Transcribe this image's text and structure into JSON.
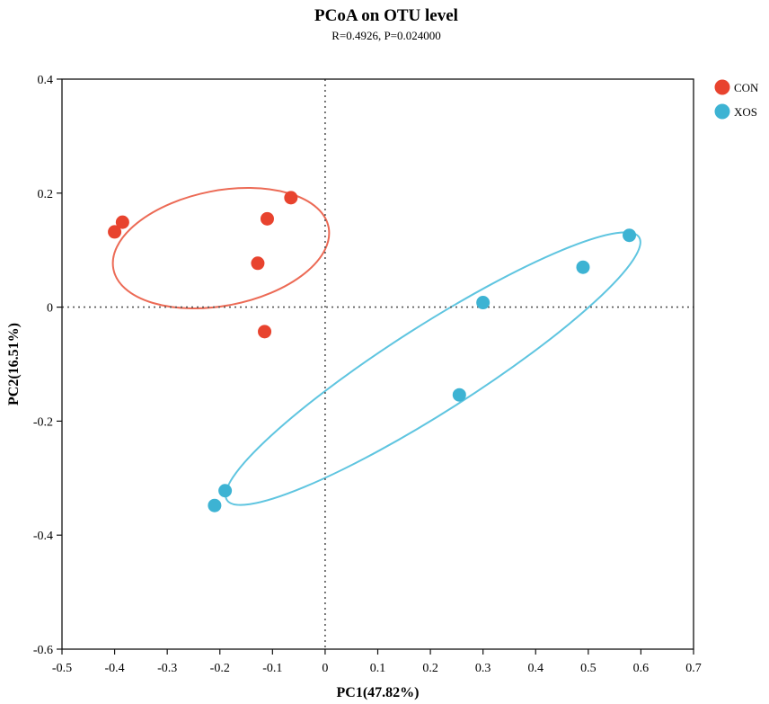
{
  "chart_data": {
    "type": "scatter",
    "title": "PCoA on OTU level",
    "subtitle": "R=0.4926, P=0.024000",
    "xlabel": "PC1(47.82%)",
    "ylabel": "PC2(16.51%)",
    "xlim": [
      -0.5,
      0.7
    ],
    "ylim": [
      -0.6,
      0.4
    ],
    "xticks": [
      -0.5,
      -0.4,
      -0.3,
      -0.2,
      -0.1,
      0,
      0.1,
      0.2,
      0.3,
      0.4,
      0.5,
      0.6,
      0.7
    ],
    "yticks": [
      -0.6,
      -0.4,
      -0.2,
      0,
      0.2,
      0.4
    ],
    "xtick_labels": [
      "-0.5",
      "-0.4",
      "-0.3",
      "-0.2",
      "-0.1",
      "0",
      "0.1",
      "0.2",
      "0.3",
      "0.4",
      "0.5",
      "0.6",
      "0.7"
    ],
    "ytick_labels": [
      "-0.6",
      "-0.4",
      "-0.2",
      "0",
      "0.2",
      "0.4"
    ],
    "reference_lines": {
      "x": 0,
      "y": 0,
      "style": "dotted"
    },
    "grid": false,
    "legend": "top-right",
    "series": [
      {
        "name": "CON",
        "color": "#e8432e",
        "ellipse_color": "#ec6a55",
        "points": [
          [
            -0.4,
            0.132
          ],
          [
            -0.385,
            0.149
          ],
          [
            -0.065,
            0.192
          ],
          [
            -0.11,
            0.155
          ],
          [
            -0.128,
            0.077
          ],
          [
            -0.115,
            -0.043
          ]
        ]
      },
      {
        "name": "XOS",
        "color": "#3db3d3",
        "ellipse_color": "#5fc5e0",
        "points": [
          [
            0.578,
            0.126
          ],
          [
            0.49,
            0.07
          ],
          [
            0.3,
            0.008
          ],
          [
            0.255,
            -0.154
          ],
          [
            -0.19,
            -0.322
          ],
          [
            -0.21,
            -0.348
          ]
        ]
      }
    ]
  }
}
